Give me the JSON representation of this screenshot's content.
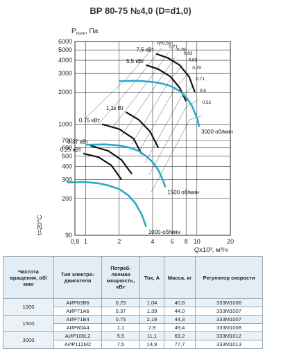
{
  "chart_data": {
    "type": "line",
    "title": "ВР 80-75 №4,0 (D=d1,0)",
    "ylabel": "Pполн, Па",
    "ylabel_main": "P",
    "ylabel_sub": "полн",
    "ylabel_unit": ", Па",
    "xlabel": "Qх10³, м³/ч",
    "temperature_label": "t=20°C",
    "x_scale": "log",
    "y_scale": "log",
    "xlim": [
      0.8,
      20
    ],
    "ylim": [
      90,
      6000
    ],
    "x_ticks": [
      0.8,
      1,
      2,
      4,
      6,
      8,
      10,
      20
    ],
    "x_tick_labels": [
      "0,8",
      "1",
      "2",
      "4",
      "6",
      "8",
      "10",
      "20"
    ],
    "y_ticks": [
      90,
      200,
      300,
      400,
      500,
      600,
      700,
      1000,
      2000,
      3000,
      4000,
      5000,
      6000
    ],
    "y_tick_labels": [
      "90",
      "200",
      "300",
      "400",
      "500",
      "600",
      "700",
      "1000",
      "2000",
      "3000",
      "4000",
      "5000",
      "6000"
    ],
    "grid": true,
    "speed_curves": [
      {
        "label": "3000 об/мин",
        "x": [
          2.0,
          3.0,
          4.0,
          5.0,
          6.0,
          7.0,
          8.0,
          9.0,
          10.0,
          10.5
        ],
        "y": [
          2550,
          2560,
          2500,
          2400,
          2250,
          2050,
          1800,
          1500,
          1150,
          950
        ]
      },
      {
        "label": "1500 об/мин",
        "x": [
          1.0,
          1.5,
          2.0,
          2.5,
          3.0,
          3.5,
          4.0,
          4.5,
          5.0,
          5.2
        ],
        "y": [
          640,
          645,
          630,
          600,
          560,
          500,
          440,
          370,
          290,
          255
        ]
      },
      {
        "label": "1000-об/мин",
        "x": [
          0.68,
          1.0,
          1.3,
          1.6,
          2.0,
          2.4,
          2.8,
          3.2,
          3.5
        ],
        "y": [
          283,
          285,
          278,
          265,
          245,
          215,
          180,
          140,
          108
        ]
      }
    ],
    "power_curves": [
      {
        "label": "7,5 кВт",
        "x": [
          4.3,
          5.5,
          7.0,
          8.5,
          9.6
        ],
        "y": [
          4600,
          4200,
          3600,
          2800,
          2000
        ]
      },
      {
        "label": "5,5 кВт",
        "x": [
          3.5,
          4.5,
          5.8,
          7.0,
          8.0
        ],
        "y": [
          3600,
          3300,
          2800,
          2200,
          1650
        ]
      },
      {
        "label": "1,1к Вт",
        "x": [
          2.3,
          3.0,
          3.8,
          4.5
        ],
        "y": [
          1300,
          1100,
          850,
          600
        ]
      },
      {
        "label": "0,75 кВт",
        "x": [
          1.4,
          2.0,
          2.7,
          3.2
        ],
        "y": [
          1000,
          900,
          730,
          520
        ]
      },
      {
        "label": "0,37 кВт",
        "x": [
          1.1,
          1.6,
          2.1,
          2.6
        ],
        "y": [
          630,
          560,
          460,
          340
        ]
      },
      {
        "label": "0,25 кВт",
        "x": [
          0.95,
          1.3,
          1.7,
          2.1
        ],
        "y": [
          530,
          490,
          410,
          300
        ]
      }
    ],
    "efficiency_labels": [
      "η=0,58",
      "0,71",
      "0,79",
      "0,83",
      "0,83",
      "0,79",
      "0,71",
      "0,6",
      "0,52"
    ]
  },
  "table": {
    "headers": [
      "Частота вращения, об/мин",
      "Тип электро-двигателя",
      "Потреб-ляемая мощность, кВт",
      "Ток, А",
      "Масса, кг",
      "Регулятор скорости"
    ],
    "rows": [
      {
        "freq": "1000",
        "type": "АИР63В6",
        "power": "0,25",
        "current": "1,04",
        "mass": "40,8",
        "reg": "333М1006"
      },
      {
        "freq": "",
        "type": "АИР71А6",
        "power": "0,37",
        "current": "1,39",
        "mass": "44,0",
        "reg": "333М1007"
      },
      {
        "freq": "1500",
        "type": "АИР71В4",
        "power": "0,75",
        "current": "2,18",
        "mass": "44,3",
        "reg": "333М1007"
      },
      {
        "freq": "",
        "type": "АИР80А4",
        "power": "1,1",
        "current": "2,9",
        "mass": "49,4",
        "reg": "333М1008"
      },
      {
        "freq": "3000",
        "type": "АИР100L2",
        "power": "5,5",
        "current": "11,1",
        "mass": "69,2",
        "reg": "333М1012"
      },
      {
        "freq": "",
        "type": "АИР112М2",
        "power": "7,5",
        "current": "14,9",
        "mass": "77,7",
        "reg": "333М1013"
      }
    ]
  }
}
